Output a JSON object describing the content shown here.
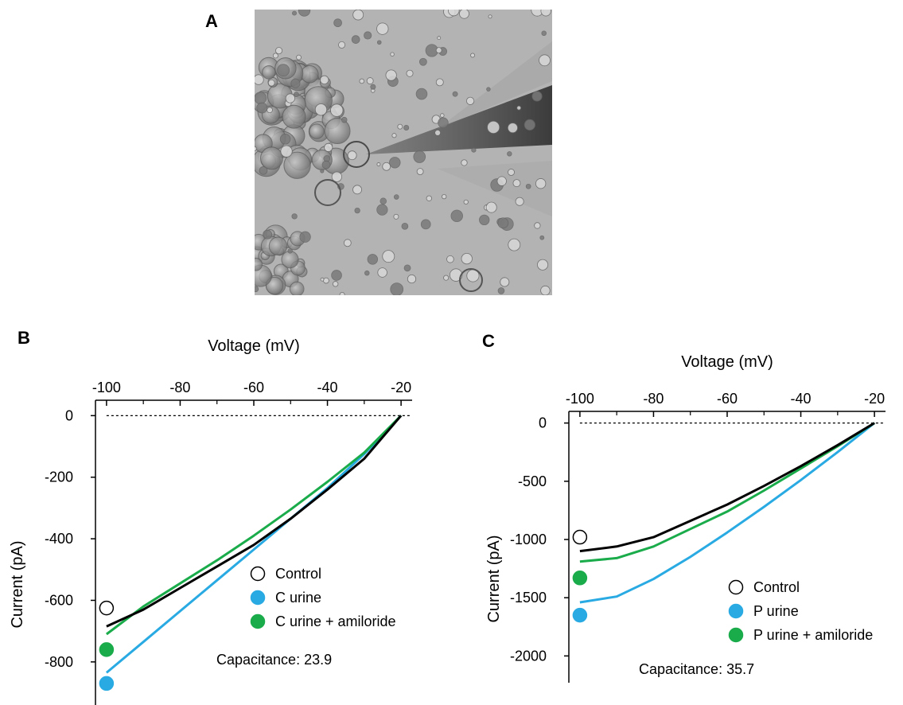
{
  "panels": {
    "a": {
      "letter": "A"
    },
    "b": {
      "letter": "B"
    },
    "c": {
      "letter": "C"
    }
  },
  "micrograph": {
    "description_icon": "cell-micrograph-with-pipette"
  },
  "chart_data": [
    {
      "type": "line",
      "panel": "B",
      "xlabel": "Voltage (mV)",
      "ylabel": "Current (pA)",
      "xlim": [
        -103,
        -17
      ],
      "ylim": [
        -940,
        50
      ],
      "x_ticks": [
        -100,
        -80,
        -60,
        -40,
        -20
      ],
      "x_tick_labels": [
        "-100",
        "-80",
        "-60",
        "-40",
        "-20"
      ],
      "y_ticks": [
        0,
        -200,
        -400,
        -600,
        -800
      ],
      "y_tick_labels": [
        "0",
        "-200",
        "-400",
        "-600",
        "-800"
      ],
      "x_axis_position": "top",
      "zero_reference_line": "dashed",
      "series": [
        {
          "name": "Control",
          "color": "#000000",
          "marker": "open-circle",
          "marker_point": [
            -100,
            -625
          ],
          "x": [
            -100,
            -90,
            -80,
            -70,
            -60,
            -50,
            -40,
            -30,
            -20
          ],
          "y": [
            -685,
            -630,
            -560,
            -490,
            -420,
            -335,
            -240,
            -140,
            0
          ]
        },
        {
          "name": "C urine",
          "color": "#29aae2",
          "marker": "filled-circle",
          "marker_point": [
            -100,
            -870
          ],
          "x": [
            -100,
            -90,
            -80,
            -70,
            -60,
            -50,
            -40,
            -30,
            -20
          ],
          "y": [
            -835,
            -735,
            -635,
            -535,
            -435,
            -335,
            -235,
            -125,
            0
          ]
        },
        {
          "name": "C urine + amiloride",
          "color": "#1aab4b",
          "marker": "filled-circle",
          "marker_point": [
            -100,
            -760
          ],
          "x": [
            -100,
            -90,
            -80,
            -70,
            -60,
            -50,
            -40,
            -30,
            -20
          ],
          "y": [
            -710,
            -620,
            -545,
            -470,
            -390,
            -305,
            -215,
            -120,
            0
          ]
        }
      ],
      "annotation": "Capacitance: 23.9",
      "legend_placement": "lower-right"
    },
    {
      "type": "line",
      "panel": "C",
      "xlabel": "Voltage (mV)",
      "ylabel": "Current (pA)",
      "xlim": [
        -103,
        -17
      ],
      "ylim": [
        -2230,
        100
      ],
      "x_ticks": [
        -100,
        -80,
        -60,
        -40,
        -20
      ],
      "x_tick_labels": [
        "-100",
        "-80",
        "-60",
        "-40",
        "-20"
      ],
      "y_ticks": [
        0,
        -500,
        -1000,
        -1500,
        -2000
      ],
      "y_tick_labels": [
        "0",
        "-500",
        "-1000",
        "-1500",
        "-2000"
      ],
      "x_axis_position": "top",
      "zero_reference_line": "dashed",
      "series": [
        {
          "name": "Control",
          "color": "#000000",
          "marker": "open-circle",
          "marker_point": [
            -100,
            -980
          ],
          "x": [
            -100,
            -90,
            -80,
            -70,
            -60,
            -50,
            -40,
            -30,
            -20
          ],
          "y": [
            -1100,
            -1060,
            -980,
            -840,
            -700,
            -540,
            -370,
            -190,
            0
          ]
        },
        {
          "name": "P urine",
          "color": "#29aae2",
          "marker": "filled-circle",
          "marker_point": [
            -100,
            -1650
          ],
          "x": [
            -100,
            -90,
            -80,
            -70,
            -60,
            -50,
            -40,
            -30,
            -20
          ],
          "y": [
            -1540,
            -1490,
            -1340,
            -1150,
            -940,
            -720,
            -490,
            -250,
            0
          ]
        },
        {
          "name": "P urine + amiloride",
          "color": "#1aab4b",
          "marker": "filled-circle",
          "marker_point": [
            -100,
            -1330
          ],
          "x": [
            -100,
            -90,
            -80,
            -70,
            -60,
            -50,
            -40,
            -30,
            -20
          ],
          "y": [
            -1190,
            -1160,
            -1060,
            -910,
            -760,
            -580,
            -390,
            -200,
            0
          ]
        }
      ],
      "annotation": "Capacitance: 35.7",
      "legend_placement": "lower-right"
    }
  ]
}
